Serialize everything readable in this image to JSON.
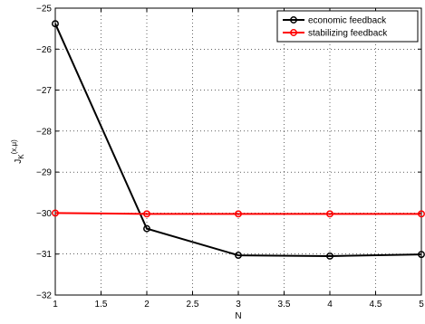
{
  "chart_data": {
    "type": "line",
    "title": "",
    "xlabel": "N",
    "ylabel": {
      "main": "J",
      "sub": "K",
      "sup": "(x,μ)"
    },
    "xlim": [
      1,
      5
    ],
    "ylim": [
      -32,
      -25
    ],
    "xticks": [
      1,
      1.5,
      2,
      2.5,
      3,
      3.5,
      4,
      4.5,
      5
    ],
    "xtick_labels": [
      "1",
      "1.5",
      "2",
      "2.5",
      "3",
      "3.5",
      "4",
      "4.5",
      "5"
    ],
    "yticks": [
      -32,
      -31,
      -30,
      -29,
      -28,
      -27,
      -26,
      -25
    ],
    "ytick_labels": [
      "−32",
      "−31",
      "−30",
      "−29",
      "−28",
      "−27",
      "−26",
      "−25"
    ],
    "grid": true,
    "grid_style": "dotted",
    "legend": {
      "position": "top-right",
      "entries": [
        "economic feedback",
        "stabilizing feedback"
      ]
    },
    "x": [
      1,
      2,
      3,
      4,
      5
    ],
    "series": [
      {
        "name": "economic feedback",
        "color": "#000000",
        "marker": "circle",
        "values": [
          -25.38,
          -30.38,
          -31.03,
          -31.05,
          -31.01
        ]
      },
      {
        "name": "stabilizing feedback",
        "color": "#ff0000",
        "marker": "circle",
        "values": [
          -30.0,
          -30.02,
          -30.02,
          -30.02,
          -30.02
        ]
      }
    ]
  }
}
